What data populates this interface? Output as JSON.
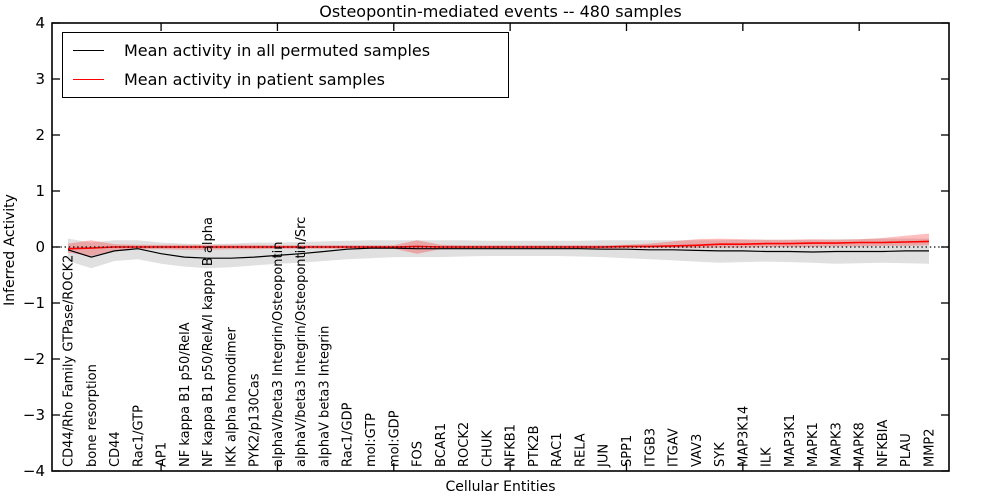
{
  "chart_data": {
    "type": "line",
    "title": "Osteopontin-mediated events -- 480 samples",
    "xlabel": "Cellular Entities",
    "ylabel": "Inferred Activity",
    "ylim": [
      -4,
      4
    ],
    "ytick_values": [
      4,
      3,
      2,
      1,
      0,
      -1,
      -2,
      -3,
      -4
    ],
    "ytick_labels": [
      "4",
      "3",
      "2",
      "1",
      "0",
      "−1",
      "−2",
      "−3",
      "−4"
    ],
    "grid": false,
    "legend_position": "upper left",
    "zero_line": {
      "y": 0,
      "style": "dotted",
      "color": "#000000"
    },
    "colors": {
      "permuted_line": "#000000",
      "patient_line": "#ff0000",
      "permuted_band": "rgba(0,0,0,0.12)",
      "patient_band": "rgba(255,0,0,0.26)"
    },
    "categories": [
      "CD44/Rho Family GTPase/ROCK2",
      "bone resorption",
      "CD44",
      "Rac1/GTP",
      "AP1",
      "NF kappa B1 p50/RelA",
      "NF kappa B1 p50/RelA/I kappa B alpha",
      "IKK alpha homodimer",
      "PYK2/p130Cas",
      "alphaV/beta3 Integrin/Osteopontin",
      "alphaV/beta3 Integrin/Osteopontin/Src",
      "alphaV beta3 Integrin",
      "Rac1/GDP",
      "mol:GTP",
      "mol:GDP",
      "FOS",
      "BCAR1",
      "ROCK2",
      "CHUK",
      "NFKB1",
      "PTK2B",
      "RAC1",
      "RELA",
      "JUN",
      "SPP1",
      "ITGB3",
      "ITGAV",
      "VAV3",
      "SYK",
      "MAP3K14",
      "ILK",
      "MAP3K1",
      "MAPK1",
      "MAPK3",
      "MAPK8",
      "NFKBIA",
      "PLAU",
      "MMP2"
    ],
    "series": [
      {
        "name": "Mean activity in all permuted samples",
        "color": "#000000",
        "values": [
          -0.05,
          -0.18,
          -0.07,
          -0.03,
          -0.12,
          -0.18,
          -0.2,
          -0.2,
          -0.18,
          -0.15,
          -0.12,
          -0.08,
          -0.04,
          -0.02,
          -0.02,
          -0.03,
          -0.03,
          -0.03,
          -0.03,
          -0.03,
          -0.03,
          -0.03,
          -0.03,
          -0.04,
          -0.04,
          -0.05,
          -0.05,
          -0.06,
          -0.07,
          -0.07,
          -0.08,
          -0.08,
          -0.09,
          -0.08,
          -0.08,
          -0.08,
          -0.07,
          -0.07
        ],
        "band_upper": [
          0.15,
          0.08,
          0.12,
          0.12,
          0.08,
          0.06,
          0.05,
          0.06,
          0.08,
          0.08,
          0.09,
          0.1,
          0.11,
          0.12,
          0.12,
          0.12,
          0.12,
          0.12,
          0.11,
          0.11,
          0.11,
          0.11,
          0.11,
          0.12,
          0.12,
          0.12,
          0.12,
          0.12,
          0.12,
          0.13,
          0.13,
          0.13,
          0.13,
          0.14,
          0.14,
          0.15,
          0.15,
          0.15
        ],
        "band_lower": [
          -0.25,
          -0.38,
          -0.25,
          -0.22,
          -0.3,
          -0.35,
          -0.38,
          -0.36,
          -0.33,
          -0.3,
          -0.28,
          -0.25,
          -0.22,
          -0.2,
          -0.18,
          -0.18,
          -0.18,
          -0.17,
          -0.16,
          -0.16,
          -0.16,
          -0.16,
          -0.17,
          -0.18,
          -0.2,
          -0.22,
          -0.24,
          -0.26,
          -0.28,
          -0.27,
          -0.26,
          -0.27,
          -0.28,
          -0.3,
          -0.29,
          -0.28,
          -0.29,
          -0.3
        ]
      },
      {
        "name": "Mean activity in patient samples",
        "color": "#ff0000",
        "values": [
          -0.03,
          -0.02,
          0.0,
          0.0,
          0.0,
          0.0,
          0.0,
          0.0,
          0.0,
          0.0,
          0.0,
          0.0,
          0.0,
          0.0,
          0.0,
          0.01,
          0.0,
          0.0,
          0.0,
          0.0,
          0.0,
          0.0,
          0.0,
          0.0,
          0.01,
          0.01,
          0.02,
          0.03,
          0.05,
          0.05,
          0.06,
          0.06,
          0.07,
          0.07,
          0.08,
          0.08,
          0.09,
          0.1
        ],
        "band_upper": [
          0.06,
          0.12,
          0.05,
          0.04,
          0.04,
          0.04,
          0.04,
          0.04,
          0.04,
          0.03,
          0.03,
          0.03,
          0.03,
          0.03,
          0.03,
          0.12,
          0.04,
          0.03,
          0.03,
          0.03,
          0.03,
          0.03,
          0.03,
          0.03,
          0.04,
          0.06,
          0.1,
          0.14,
          0.15,
          0.14,
          0.13,
          0.13,
          0.14,
          0.13,
          0.14,
          0.16,
          0.2,
          0.24
        ],
        "band_lower": [
          -0.1,
          -0.16,
          -0.06,
          -0.04,
          -0.04,
          -0.05,
          -0.05,
          -0.04,
          -0.04,
          -0.03,
          -0.03,
          -0.03,
          -0.03,
          -0.03,
          -0.03,
          -0.12,
          -0.04,
          -0.03,
          -0.03,
          -0.03,
          -0.03,
          -0.03,
          -0.03,
          -0.03,
          -0.02,
          -0.02,
          -0.02,
          -0.02,
          -0.01,
          -0.01,
          0.0,
          0.0,
          0.0,
          0.01,
          0.01,
          0.02,
          0.02,
          0.03
        ]
      }
    ]
  },
  "legend": {
    "entries": [
      {
        "label": "Mean activity in all permuted samples",
        "color": "#000000"
      },
      {
        "label": "Mean activity in patient samples",
        "color": "#ff0000"
      }
    ]
  }
}
